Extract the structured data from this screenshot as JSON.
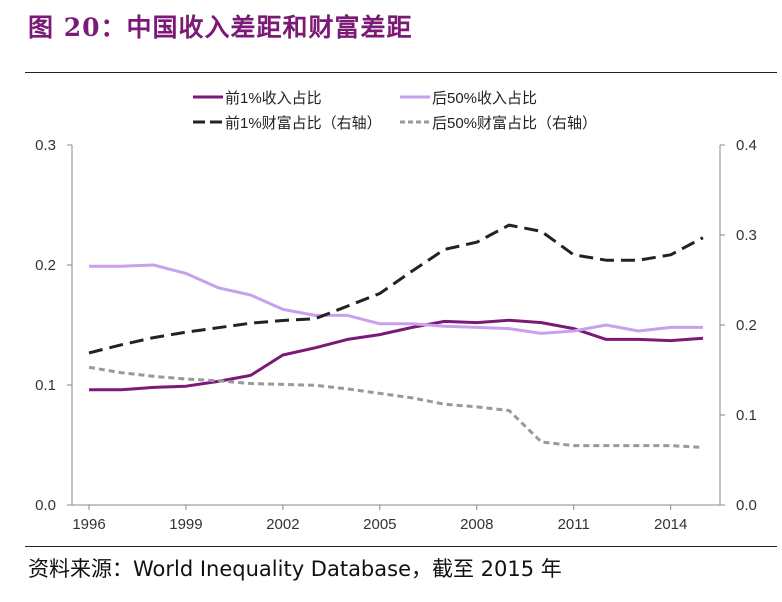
{
  "figure": {
    "title": "图 20：中国收入差距和财富差距",
    "source": "资料来源：World Inequality Database，截至 2015 年"
  },
  "chart_data": {
    "type": "line",
    "x": [
      1996,
      1997,
      1998,
      1999,
      2000,
      2001,
      2002,
      2003,
      2004,
      2005,
      2006,
      2007,
      2008,
      2009,
      2010,
      2011,
      2012,
      2013,
      2014,
      2015
    ],
    "x_ticks": [
      1996,
      1999,
      2002,
      2005,
      2008,
      2011,
      2014
    ],
    "y_left": {
      "lim": [
        0.0,
        0.3
      ],
      "ticks": [
        "0.0",
        "0.1",
        "0.2",
        "0.3"
      ]
    },
    "y_right": {
      "lim": [
        0.0,
        0.4
      ],
      "ticks": [
        "0.0",
        "0.1",
        "0.2",
        "0.3",
        "0.4"
      ]
    },
    "legend_position": "top",
    "grid": false,
    "series": [
      {
        "name": "前1%收入占比",
        "axis": "left",
        "color": "#7b1a76",
        "dash": "none",
        "values": [
          0.096,
          0.096,
          0.098,
          0.099,
          0.103,
          0.108,
          0.125,
          0.131,
          0.138,
          0.142,
          0.148,
          0.153,
          0.152,
          0.154,
          0.152,
          0.147,
          0.138,
          0.138,
          0.137,
          0.139
        ]
      },
      {
        "name": "后50%收入占比",
        "axis": "left",
        "color": "#c9a0ee",
        "dash": "none",
        "values": [
          0.199,
          0.199,
          0.2,
          0.193,
          0.181,
          0.175,
          0.163,
          0.158,
          0.158,
          0.151,
          0.151,
          0.149,
          0.148,
          0.147,
          0.143,
          0.145,
          0.15,
          0.145,
          0.148,
          0.148
        ]
      },
      {
        "name": "前1%财富占比（右轴）",
        "axis": "right",
        "color": "#222222",
        "dash": "14 7",
        "values": [
          0.169,
          0.178,
          0.186,
          0.192,
          0.197,
          0.202,
          0.205,
          0.207,
          0.221,
          0.235,
          0.26,
          0.284,
          0.292,
          0.311,
          0.304,
          0.278,
          0.272,
          0.272,
          0.278,
          0.297
        ]
      },
      {
        "name": "后50%财富占比（右轴）",
        "axis": "right",
        "color": "#999999",
        "dash": "6 4",
        "values": [
          0.153,
          0.147,
          0.143,
          0.14,
          0.138,
          0.135,
          0.134,
          0.133,
          0.129,
          0.124,
          0.119,
          0.112,
          0.109,
          0.105,
          0.07,
          0.066,
          0.066,
          0.066,
          0.066,
          0.064
        ]
      }
    ]
  }
}
